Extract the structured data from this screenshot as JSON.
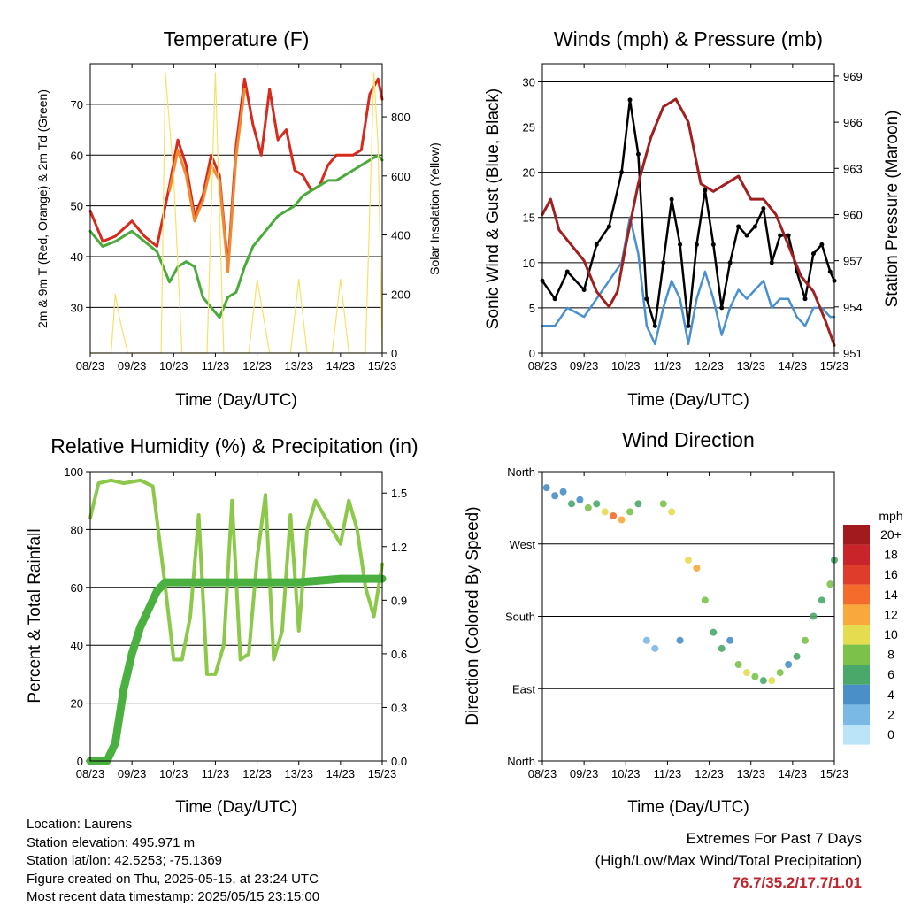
{
  "panels": {
    "temperature": {
      "title": "Temperature (F)",
      "xlabel": "Time (Day/UTC)",
      "ylabel_left": "2m & 9m T (Red, Orange) & 2m Td (Green)",
      "ylabel_right": "Solar Insolation (Yellow)"
    },
    "winds": {
      "title": "Winds (mph) & Pressure (mb)",
      "xlabel": "Time (Day/UTC)",
      "ylabel_left": "Sonic Wind & Gust (Blue, Black)",
      "ylabel_right": "Station Pressure (Maroon)"
    },
    "humidity": {
      "title": "Relative Humidity (%) & Precipitation (in)",
      "xlabel": "Time (Day/UTC)",
      "ylabel_left": "Percent & Total Rainfall"
    },
    "direction": {
      "title": "Wind Direction",
      "xlabel": "Time (Day/UTC)",
      "ylabel_left": "Direction (Colored By Speed)"
    }
  },
  "legend": {
    "title": "mph",
    "labels": [
      "20+",
      "18",
      "16",
      "14",
      "12",
      "10",
      "8",
      "6",
      "4",
      "2",
      "0"
    ],
    "colors": [
      "#a31a1e",
      "#c8242a",
      "#e03c2c",
      "#f46b2c",
      "#f8a83c",
      "#e6dc50",
      "#7cc24a",
      "#4aa86a",
      "#4a8fc8",
      "#7ab8e6",
      "#bce4f8"
    ]
  },
  "footer": {
    "location": "Location: Laurens",
    "elevation": "Station elevation: 495.971 m",
    "latlon": "Station lat/lon: 42.5253; -75.1369",
    "created": "Figure created on Thu, 2025-05-15, at 23:24 UTC",
    "recent": "Most recent data timestamp: 2025/05/15 23:15:00"
  },
  "extremes": {
    "title": "Extremes For Past 7 Days",
    "subtitle": "(High/Low/Max Wind/Total Precipitation)",
    "values": "76.7/35.2/17.7/1.01"
  },
  "chart_data": [
    {
      "type": "line",
      "id": "temperature",
      "title": "Temperature (F)",
      "xlabel": "Time (Day/UTC)",
      "ylabel": "2m & 9m T (Red, Orange) & 2m Td (Green)",
      "y2label": "Solar Insolation (Yellow)",
      "x_ticks": [
        "08/23",
        "09/23",
        "10/23",
        "11/23",
        "12/23",
        "13/23",
        "14/23",
        "15/23"
      ],
      "y_ticks": [
        30,
        40,
        50,
        60,
        70
      ],
      "ylim": [
        21,
        78
      ],
      "y2_ticks": [
        0,
        200,
        400,
        600,
        800
      ],
      "y2lim": [
        0,
        980
      ],
      "grid": true,
      "series": [
        {
          "name": "2m T",
          "color": "#d62a1e",
          "x": [
            0,
            0.3,
            0.6,
            1,
            1.3,
            1.6,
            1.9,
            2.1,
            2.3,
            2.5,
            2.7,
            2.9,
            3.1,
            3.3,
            3.5,
            3.7,
            3.9,
            4.1,
            4.3,
            4.5,
            4.7,
            4.9,
            5.1,
            5.3,
            5.5,
            5.7,
            5.9,
            6.1,
            6.3,
            6.5,
            6.7,
            6.9,
            7.0
          ],
          "y": [
            49,
            43,
            44,
            47,
            44,
            42,
            54,
            63,
            58,
            48,
            52,
            60,
            56,
            38,
            62,
            75,
            66,
            60,
            73,
            63,
            65,
            57,
            56,
            53,
            54,
            58,
            60,
            60,
            60,
            61,
            72,
            75,
            71
          ]
        },
        {
          "name": "9m T",
          "color": "#f08a30",
          "x": [
            1.9,
            2.1,
            2.3,
            2.5,
            2.7,
            2.9,
            3.1,
            3.3,
            3.5,
            3.7
          ],
          "y": [
            53,
            61,
            56,
            47,
            51,
            58,
            55,
            37,
            60,
            73
          ]
        },
        {
          "name": "2m Td",
          "color": "#4aaa3c",
          "x": [
            0,
            0.3,
            0.6,
            1,
            1.3,
            1.6,
            1.9,
            2.1,
            2.3,
            2.5,
            2.7,
            2.9,
            3.1,
            3.3,
            3.5,
            3.7,
            3.9,
            4.1,
            4.3,
            4.5,
            4.7,
            4.9,
            5.1,
            5.3,
            5.5,
            5.7,
            5.9,
            6.1,
            6.3,
            6.5,
            6.7,
            6.9,
            7.0
          ],
          "y": [
            45,
            42,
            43,
            45,
            43,
            41,
            35,
            38,
            39,
            38,
            32,
            30,
            28,
            32,
            33,
            38,
            42,
            44,
            46,
            48,
            49,
            50,
            52,
            53,
            54,
            55,
            55,
            56,
            57,
            58,
            59,
            60,
            59
          ]
        },
        {
          "name": "Solar Insolation",
          "color": "#f7e06a",
          "x": [
            0,
            0.5,
            0.6,
            0.7,
            0.9,
            1.3,
            1.7,
            1.8,
            2.0,
            2.2,
            2.5,
            2.8,
            3.0,
            3.2,
            3.5,
            3.8,
            4.0,
            4.3,
            4.8,
            5.0,
            5.2,
            5.8,
            6.0,
            6.2,
            6.6,
            6.8,
            6.9,
            7.0
          ],
          "y": [
            0,
            0,
            200,
            120,
            0,
            0,
            0,
            950,
            600,
            0,
            0,
            0,
            950,
            0,
            0,
            0,
            250,
            0,
            0,
            250,
            0,
            0,
            250,
            0,
            0,
            950,
            700,
            0
          ]
        }
      ]
    },
    {
      "type": "line",
      "id": "winds",
      "title": "Winds (mph) & Pressure (mb)",
      "xlabel": "Time (Day/UTC)",
      "ylabel": "Sonic Wind & Gust (Blue, Black)",
      "y2label": "Station Pressure (Maroon)",
      "x_ticks": [
        "08/23",
        "09/23",
        "10/23",
        "11/23",
        "12/23",
        "13/23",
        "14/23",
        "15/23"
      ],
      "y_ticks": [
        0,
        5,
        10,
        15,
        20,
        25,
        30
      ],
      "ylim": [
        0,
        32
      ],
      "y2_ticks": [
        951,
        954,
        957,
        960,
        963,
        966,
        969
      ],
      "y2lim": [
        951,
        969.8
      ],
      "grid": true,
      "series": [
        {
          "name": "Sonic Wind",
          "color": "#4a90d0",
          "x": [
            0,
            0.3,
            0.6,
            1,
            1.3,
            1.6,
            1.9,
            2.1,
            2.3,
            2.5,
            2.7,
            2.9,
            3.1,
            3.3,
            3.5,
            3.7,
            3.9,
            4.1,
            4.3,
            4.5,
            4.7,
            4.9,
            5.1,
            5.3,
            5.5,
            5.7,
            5.9,
            6.1,
            6.3,
            6.5,
            6.7,
            6.9,
            7.0
          ],
          "y": [
            3,
            3,
            5,
            4,
            6,
            8,
            10,
            15,
            11,
            3,
            1,
            5,
            8,
            6,
            1,
            6,
            9,
            6,
            2,
            5,
            7,
            6,
            7,
            8,
            5,
            6,
            6,
            4,
            3,
            5,
            5,
            4,
            4
          ]
        },
        {
          "name": "Gust",
          "color": "#000000",
          "x": [
            0,
            0.3,
            0.6,
            1,
            1.3,
            1.6,
            1.9,
            2.1,
            2.3,
            2.5,
            2.7,
            2.9,
            3.1,
            3.3,
            3.5,
            3.7,
            3.9,
            4.1,
            4.3,
            4.5,
            4.7,
            4.9,
            5.1,
            5.3,
            5.5,
            5.7,
            5.9,
            6.1,
            6.3,
            6.5,
            6.7,
            6.9,
            7.0
          ],
          "y": [
            8,
            6,
            9,
            7,
            12,
            14,
            20,
            28,
            22,
            6,
            3,
            10,
            17,
            12,
            3,
            12,
            18,
            12,
            5,
            10,
            14,
            13,
            14,
            16,
            10,
            13,
            13,
            9,
            6,
            11,
            12,
            9,
            8
          ]
        },
        {
          "name": "Station Pressure",
          "color": "#a02020",
          "x": [
            0,
            0.2,
            0.4,
            0.7,
            1.0,
            1.3,
            1.6,
            1.8,
            2.0,
            2.3,
            2.6,
            2.9,
            3.2,
            3.5,
            3.8,
            4.1,
            4.4,
            4.7,
            5.0,
            5.3,
            5.6,
            5.9,
            6.2,
            6.5,
            6.8,
            7.0
          ],
          "y": [
            960,
            961,
            959,
            958,
            957,
            955,
            954,
            955,
            958,
            962,
            965,
            967,
            967.5,
            966,
            962,
            961.5,
            962,
            962.5,
            961,
            961,
            960,
            958,
            956,
            955,
            953,
            951.5
          ]
        }
      ]
    },
    {
      "type": "line",
      "id": "humidity",
      "title": "Relative Humidity (%) & Precipitation (in)",
      "xlabel": "Time (Day/UTC)",
      "ylabel": "Percent & Total Rainfall",
      "x_ticks": [
        "08/23",
        "09/23",
        "10/23",
        "11/23",
        "12/23",
        "13/23",
        "14/23",
        "15/23"
      ],
      "y_ticks": [
        0,
        20,
        40,
        60,
        80,
        100
      ],
      "ylim": [
        0,
        100
      ],
      "y2_ticks": [
        "0.0",
        "0.3",
        "0.6",
        "0.9",
        "1.2",
        "1.5"
      ],
      "y2lim": [
        0,
        1.62
      ],
      "grid": true,
      "series": [
        {
          "name": "Relative Humidity",
          "color": "#8cc84a",
          "x": [
            0,
            0.2,
            0.5,
            0.8,
            1.2,
            1.5,
            1.8,
            2.0,
            2.2,
            2.4,
            2.6,
            2.8,
            3.0,
            3.2,
            3.4,
            3.6,
            3.8,
            4.0,
            4.2,
            4.4,
            4.6,
            4.8,
            5.0,
            5.2,
            5.4,
            5.6,
            5.8,
            6.0,
            6.2,
            6.4,
            6.6,
            6.8,
            7.0
          ],
          "y": [
            84,
            96,
            97,
            96,
            97,
            95,
            60,
            35,
            35,
            50,
            85,
            30,
            30,
            40,
            90,
            35,
            37,
            70,
            92,
            35,
            45,
            85,
            45,
            80,
            90,
            85,
            80,
            75,
            90,
            80,
            60,
            50,
            68
          ]
        },
        {
          "name": "Total Precipitation",
          "color": "#4ab040",
          "x": [
            0,
            0.4,
            0.6,
            0.8,
            1.0,
            1.2,
            1.4,
            1.6,
            1.8,
            2.0,
            3.0,
            4.0,
            5.0,
            5.5,
            6.0,
            6.5,
            7.0
          ],
          "y": [
            0,
            0,
            0.1,
            0.4,
            0.6,
            0.75,
            0.85,
            0.95,
            1.0,
            1.0,
            1.0,
            1.0,
            1.0,
            1.01,
            1.02,
            1.02,
            1.02
          ]
        }
      ]
    },
    {
      "type": "scatter",
      "id": "direction",
      "title": "Wind Direction",
      "xlabel": "Time (Day/UTC)",
      "ylabel": "Direction (Colored By Speed)",
      "x_ticks": [
        "08/23",
        "09/23",
        "10/23",
        "11/23",
        "12/23",
        "13/23",
        "14/23",
        "15/23"
      ],
      "y_ticks": [
        "North",
        "East",
        "South",
        "West",
        "North"
      ],
      "ylim": [
        0,
        360
      ],
      "grid": true,
      "colorbar": "mph",
      "series": [
        {
          "name": "Wind Direction",
          "x": [
            0.1,
            0.3,
            0.5,
            0.7,
            0.9,
            1.1,
            1.3,
            1.5,
            1.7,
            1.9,
            2.1,
            2.3,
            2.5,
            2.7,
            2.9,
            3.1,
            3.3,
            3.5,
            3.7,
            3.9,
            4.1,
            4.3,
            4.5,
            4.7,
            4.9,
            5.1,
            5.3,
            5.5,
            5.7,
            5.9,
            6.1,
            6.3,
            6.5,
            6.7,
            6.9,
            7.0
          ],
          "y": [
            340,
            330,
            335,
            320,
            325,
            315,
            320,
            310,
            305,
            300,
            310,
            320,
            150,
            140,
            320,
            310,
            150,
            250,
            240,
            200,
            160,
            140,
            150,
            120,
            110,
            105,
            100,
            100,
            110,
            120,
            130,
            150,
            180,
            200,
            220,
            250
          ],
          "speed": [
            4,
            3,
            3,
            5,
            4,
            8,
            6,
            10,
            14,
            12,
            8,
            6,
            2,
            1,
            8,
            10,
            3,
            10,
            12,
            8,
            6,
            5,
            4,
            8,
            10,
            8,
            6,
            10,
            8,
            4,
            6,
            8,
            6,
            6,
            8,
            6
          ]
        }
      ]
    }
  ]
}
